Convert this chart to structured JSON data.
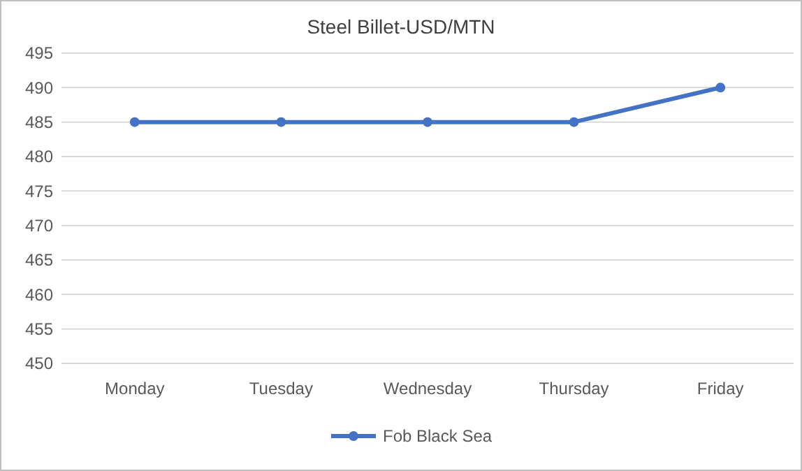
{
  "chart_data": {
    "type": "line",
    "title": "Steel Billet-USD/MTN",
    "categories": [
      "Monday",
      "Tuesday",
      "Wednesday",
      "Thursday",
      "Friday"
    ],
    "series": [
      {
        "name": "Fob Black Sea",
        "color": "#4472c4",
        "values": [
          485,
          485,
          485,
          485,
          490
        ]
      }
    ],
    "ylim": [
      450,
      495
    ],
    "yticks": [
      450,
      455,
      460,
      465,
      470,
      475,
      480,
      485,
      490,
      495
    ],
    "grid": "y",
    "legend": "bottom",
    "marker": "circle",
    "line_style": "solid"
  }
}
